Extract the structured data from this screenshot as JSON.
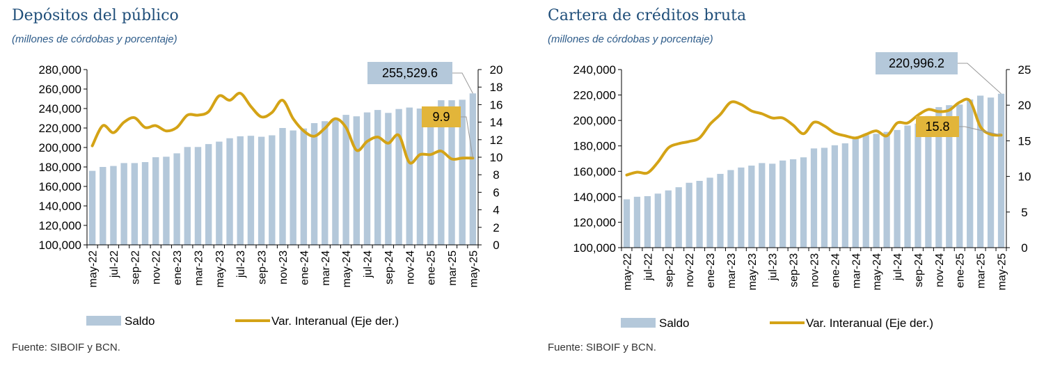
{
  "colors": {
    "bar": "#b4c8da",
    "line": "#d4a316",
    "callout_bar": "#b4c8da",
    "callout_line": "#e2b53a",
    "title": "#1f4e79"
  },
  "chart_data": [
    {
      "type": "bar",
      "title": "Depósitos del público",
      "subtitle": "(millones de córdobas y porcentaje)",
      "source": "Fuente: SIBOIF y BCN.",
      "x_tick_labels": [
        "may-22",
        "jul-22",
        "sep-22",
        "nov-22",
        "ene-23",
        "mar-23",
        "may-23",
        "jul-23",
        "sep-23",
        "nov-23",
        "ene-24",
        "mar-24",
        "may-24",
        "jul-24",
        "sep-24",
        "nov-24",
        "ene-25",
        "mar-25",
        "may-25"
      ],
      "months": [
        "may-22",
        "jun-22",
        "jul-22",
        "ago-22",
        "sep-22",
        "oct-22",
        "nov-22",
        "dic-22",
        "ene-23",
        "feb-23",
        "mar-23",
        "abr-23",
        "may-23",
        "jun-23",
        "jul-23",
        "ago-23",
        "sep-23",
        "oct-23",
        "nov-23",
        "dic-23",
        "ene-24",
        "feb-24",
        "mar-24",
        "abr-24",
        "may-24",
        "jun-24",
        "jul-24",
        "ago-24",
        "sep-24",
        "oct-24",
        "nov-24",
        "dic-24",
        "ene-25",
        "feb-25",
        "mar-25",
        "abr-25",
        "may-25"
      ],
      "y_left": {
        "min": 100000,
        "max": 280000,
        "step": 20000,
        "ticks": [
          "100,000",
          "120,000",
          "140,000",
          "160,000",
          "180,000",
          "200,000",
          "220,000",
          "240,000",
          "260,000",
          "280,000"
        ]
      },
      "y_right": {
        "min": 0,
        "max": 20,
        "step": 2,
        "ticks": [
          "0",
          "2",
          "4",
          "6",
          "8",
          "10",
          "12",
          "14",
          "16",
          "18",
          "20"
        ]
      },
      "series": [
        {
          "name": "Saldo",
          "type": "bar",
          "values": [
            176000,
            180000,
            181000,
            184000,
            184000,
            185000,
            190000,
            190500,
            194000,
            200500,
            200500,
            203500,
            206000,
            209500,
            211500,
            212000,
            211000,
            212500,
            220000,
            217500,
            219500,
            225000,
            227000,
            229500,
            233500,
            232000,
            236000,
            238500,
            235500,
            239500,
            241000,
            240000,
            241000,
            248500,
            248500,
            249000,
            255529.6
          ]
        },
        {
          "name": "Var. Interanual (Eje der.)",
          "type": "line",
          "axis": "right",
          "values": [
            11.3,
            13.6,
            12.8,
            14.0,
            14.5,
            13.4,
            13.6,
            13.0,
            13.4,
            14.8,
            14.8,
            15.2,
            17.0,
            16.5,
            17.3,
            15.8,
            14.6,
            15.1,
            16.5,
            14.4,
            13.0,
            12.4,
            13.3,
            14.4,
            13.4,
            10.8,
            11.8,
            12.3,
            11.6,
            12.5,
            9.4,
            10.3,
            10.3,
            10.7,
            9.8,
            9.9,
            9.9
          ]
        }
      ],
      "callouts": {
        "bar_value": "255,529.6",
        "line_value": "9.9"
      },
      "legend": [
        "Saldo",
        "Var. Interanual (Eje der.)"
      ]
    },
    {
      "type": "bar",
      "title": "Cartera de créditos bruta",
      "subtitle": "(millones de córdobas y porcentaje)",
      "source": "Fuente: SIBOIF y BCN.",
      "x_tick_labels": [
        "may-22",
        "jul-22",
        "sep-22",
        "nov-22",
        "ene-23",
        "mar-23",
        "may-23",
        "jul-23",
        "sep-23",
        "nov-23",
        "ene-24",
        "mar-24",
        "may-24",
        "jul-24",
        "sep-24",
        "nov-24",
        "ene-25",
        "mar-25",
        "may-25"
      ],
      "months": [
        "may-22",
        "jun-22",
        "jul-22",
        "ago-22",
        "sep-22",
        "oct-22",
        "nov-22",
        "dic-22",
        "ene-23",
        "feb-23",
        "mar-23",
        "abr-23",
        "may-23",
        "jun-23",
        "jul-23",
        "ago-23",
        "sep-23",
        "oct-23",
        "nov-23",
        "dic-23",
        "ene-24",
        "feb-24",
        "mar-24",
        "abr-24",
        "may-24",
        "jun-24",
        "jul-24",
        "ago-24",
        "sep-24",
        "oct-24",
        "nov-24",
        "dic-24",
        "ene-25",
        "feb-25",
        "mar-25",
        "abr-25",
        "may-25"
      ],
      "y_left": {
        "min": 100000,
        "max": 240000,
        "step": 20000,
        "ticks": [
          "100,000",
          "120,000",
          "140,000",
          "160,000",
          "180,000",
          "200,000",
          "220,000",
          "240,000"
        ]
      },
      "y_right": {
        "min": 0,
        "max": 25,
        "step": 5,
        "ticks": [
          "0",
          "5",
          "10",
          "15",
          "20",
          "25"
        ]
      },
      "series": [
        {
          "name": "Saldo",
          "type": "bar",
          "values": [
            138000,
            140000,
            140500,
            142500,
            145000,
            147500,
            151000,
            152500,
            155000,
            158000,
            161000,
            163000,
            164500,
            166500,
            166000,
            168500,
            169500,
            171000,
            178000,
            178500,
            180500,
            182000,
            186000,
            188500,
            189500,
            191000,
            192500,
            196000,
            197500,
            203500,
            210500,
            212000,
            212500,
            216500,
            219500,
            218000,
            220996.2
          ]
        },
        {
          "name": "Var. Interanual (Eje der.)",
          "type": "line",
          "axis": "right",
          "values": [
            10.2,
            10.6,
            10.5,
            12.0,
            14.0,
            14.6,
            14.9,
            15.4,
            17.3,
            18.7,
            20.4,
            20.1,
            19.2,
            18.8,
            18.2,
            18.2,
            17.2,
            16.0,
            17.6,
            17.1,
            16.1,
            15.7,
            15.4,
            15.9,
            16.4,
            15.7,
            17.5,
            17.5,
            18.6,
            19.4,
            19.1,
            19.3,
            20.4,
            20.6,
            17.0,
            15.9,
            15.8
          ]
        }
      ],
      "callouts": {
        "bar_value": "220,996.2",
        "line_value": "15.8"
      },
      "legend": [
        "Saldo",
        "Var. Interanual (Eje der.)"
      ]
    }
  ]
}
